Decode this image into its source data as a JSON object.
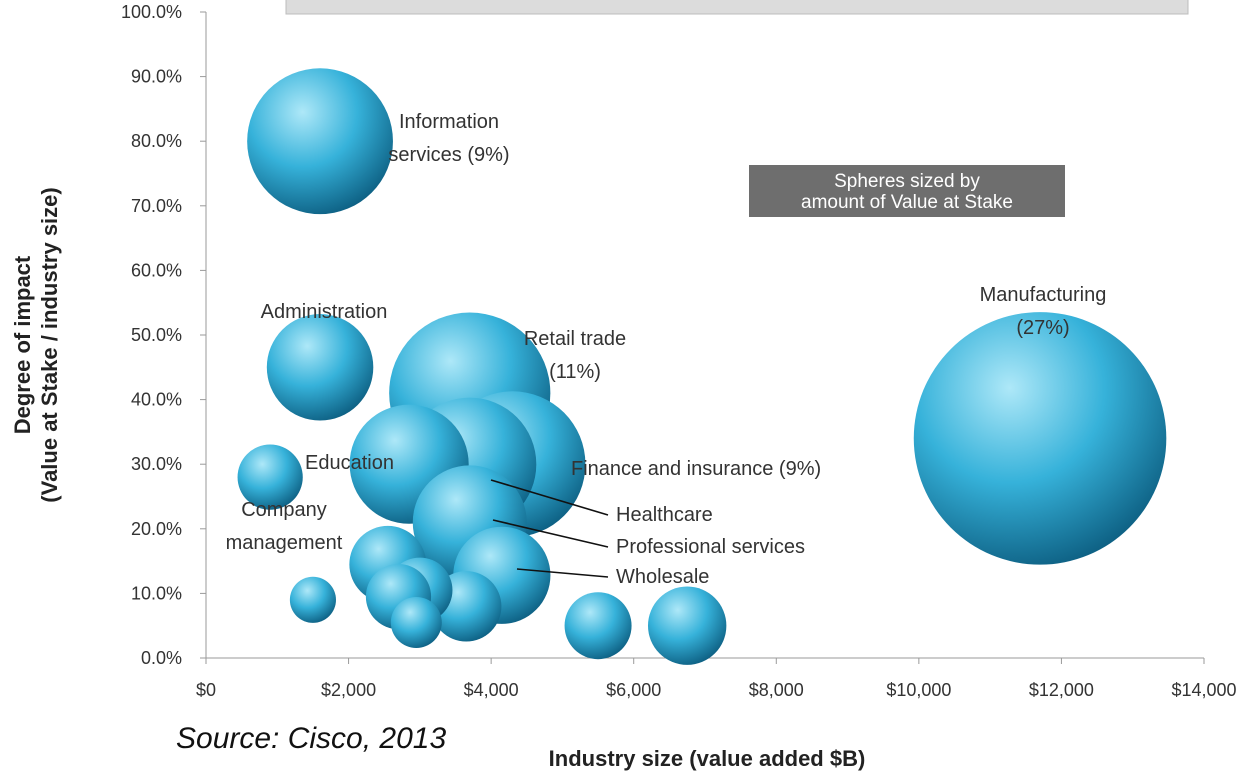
{
  "chart_data": {
    "type": "bubble",
    "xlabel": "Industry size (value added $B)",
    "ylabel_lines": [
      "Degree of impact",
      "(Value at Stake / industry size)"
    ],
    "xlim": [
      0,
      14000
    ],
    "ylim": [
      0,
      100
    ],
    "x_ticks": [
      "$0",
      "$2,000",
      "$4,000",
      "$6,000",
      "$8,000",
      "$10,000",
      "$12,000",
      "$14,000"
    ],
    "y_ticks": [
      "0.0%",
      "10.0%",
      "20.0%",
      "30.0%",
      "40.0%",
      "50.0%",
      "60.0%",
      "70.0%",
      "80.0%",
      "90.0%",
      "100.0%"
    ],
    "size_note_lines": [
      "Spheres sized by",
      "amount of Value at Stake"
    ],
    "bubble_color": "#3ab3d8",
    "points": [
      {
        "label_lines": [
          "Information",
          "services (9%)"
        ],
        "x": 1600,
        "y": 80,
        "size": 9
      },
      {
        "label_lines": [
          "Administration"
        ],
        "x": 1600,
        "y": 45,
        "size": 4.8
      },
      {
        "label_lines": [
          "Company",
          "management"
        ],
        "x": 900,
        "y": 28,
        "size": 1.8
      },
      {
        "label_lines": [
          "Education"
        ],
        "x": 2850,
        "y": 30,
        "size": 6
      },
      {
        "label_lines": [
          "Retail trade",
          "(11%)"
        ],
        "x": 3700,
        "y": 41,
        "size": 11
      },
      {
        "label_lines": [
          "Finance and insurance (9%)"
        ],
        "x": 4300,
        "y": 30,
        "size": 9
      },
      {
        "label_lines": [
          "Healthcare"
        ],
        "x": 3700,
        "y": 30,
        "size": 7.5
      },
      {
        "label_lines": [
          "Professional services"
        ],
        "x": 3700,
        "y": 21,
        "size": 5.5
      },
      {
        "label_lines": [
          "Wholesale"
        ],
        "x": 4150,
        "y": 12.8,
        "size": 4
      },
      {
        "label_lines": [
          "Manufacturing",
          "(27%)"
        ],
        "x": 11700,
        "y": 34,
        "size": 27
      },
      {
        "label_lines": [],
        "x": 2550,
        "y": 14.5,
        "size": 2.5
      },
      {
        "label_lines": [],
        "x": 3000,
        "y": 10.5,
        "size": 1.8
      },
      {
        "label_lines": [],
        "x": 2700,
        "y": 9.5,
        "size": 1.8
      },
      {
        "label_lines": [],
        "x": 3650,
        "y": 8,
        "size": 2.1
      },
      {
        "label_lines": [],
        "x": 1500,
        "y": 9,
        "size": 0.9
      },
      {
        "label_lines": [],
        "x": 2950,
        "y": 5.5,
        "size": 1.1
      },
      {
        "label_lines": [],
        "x": 5500,
        "y": 5,
        "size": 1.9
      },
      {
        "label_lines": [],
        "x": 6750,
        "y": 5,
        "size": 2.6
      }
    ]
  },
  "source": "Source: Cisco, 2013"
}
